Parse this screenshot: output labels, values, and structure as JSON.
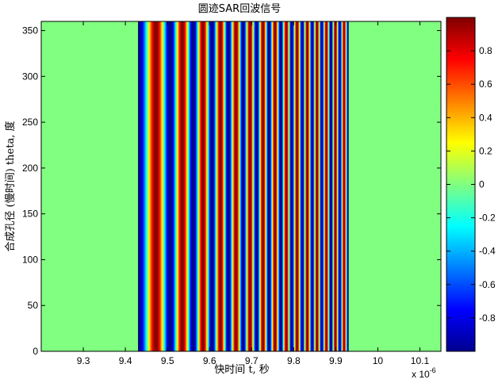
{
  "chart_data": {
    "type": "heatmap",
    "title": "圆迹SAR回波信号",
    "xlabel": "快时间 t, 秒",
    "ylabel": "合成孔径 (慢时间) theta, 度",
    "x_multiplier_label": "x 10",
    "x_multiplier_exponent": "-6",
    "xlim": [
      9.2,
      10.15
    ],
    "ylim": [
      0,
      360
    ],
    "xticks": [
      "9.3",
      "9.4",
      "9.5",
      "9.6",
      "9.7",
      "9.8",
      "9.9",
      "10",
      "10.1"
    ],
    "yticks": [
      "0",
      "50",
      "100",
      "150",
      "200",
      "250",
      "300",
      "350"
    ],
    "colorbar": {
      "range": [
        -1,
        1
      ],
      "ticks": [
        "0.8",
        "0.6",
        "0.4",
        "0.2",
        "0",
        "-0.2",
        "-0.4",
        "-0.6",
        "-0.8"
      ],
      "colormap": "jet"
    },
    "signal": {
      "description": "linear FM chirp, real part, constant along theta",
      "start_x": 9.43,
      "end_x": 9.93,
      "start_phase_value": -1,
      "instantaneous_frequency_start_cycles_per_unit": 10,
      "instantaneous_frequency_end_cycles_per_unit": 50,
      "outside_value": 0
    }
  }
}
